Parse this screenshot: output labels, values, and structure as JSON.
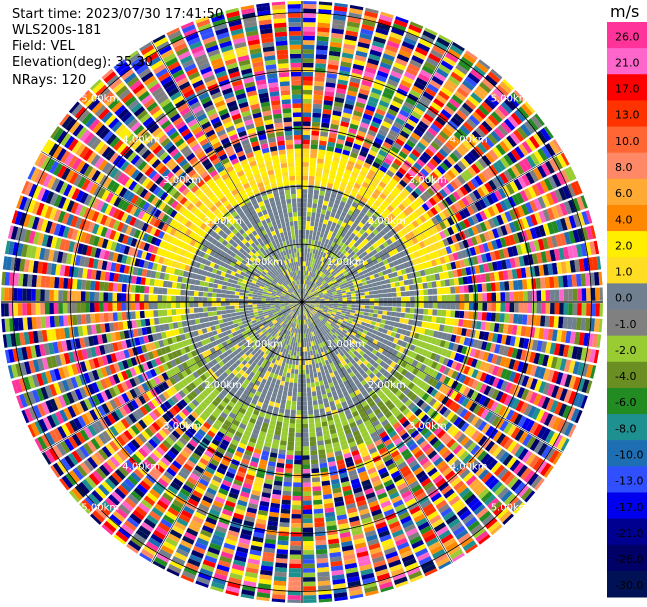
{
  "header": {
    "start_time": "Start time: 2023/07/30 17:41:50",
    "instrument": "WLS200s-181",
    "field": "Field: VEL",
    "elevation": "Elevation(deg): 35.30",
    "nrays": "NRays: 120"
  },
  "chart_data": {
    "type": "heatmap",
    "projection": "polar PPI scan",
    "field": "VEL",
    "unit": "m/s",
    "nrays": 120,
    "range_rings_km": [
      1.0,
      2.0,
      3.0,
      4.0,
      5.0
    ],
    "ring_labels": [
      "1.00km",
      "2.00km",
      "3.00km",
      "4.00km",
      "5.00km"
    ],
    "max_range_km": 5.2,
    "colorbar": {
      "unit": "m/s",
      "ticks": [
        "26.0",
        "21.0",
        "17.0",
        "13.0",
        "10.0",
        "8.0",
        "6.0",
        "4.0",
        "2.0",
        "1.0",
        "0.0",
        "-1.0",
        "-2.0",
        "-4.0",
        "-6.0",
        "-8.0",
        "-10.0",
        "-13.0",
        "-17.0",
        "-21.0",
        "-26.0",
        "-30.0"
      ],
      "colors": [
        "#ff3399",
        "#ff66cc",
        "#ff0000",
        "#ff3300",
        "#ff6633",
        "#ff8866",
        "#ffaa33",
        "#ff8800",
        "#ffee00",
        "#ffdd22",
        "#708090",
        "#808080",
        "#99cc33",
        "#6b8e23",
        "#228b22",
        "#1e9090",
        "#1e6eb4",
        "#3050ff",
        "#0000ee",
        "#000090",
        "#000066",
        "#001155"
      ]
    },
    "regions_km": [
      {
        "range": [
          0.0,
          2.0
        ],
        "dominant": "near-zero velocity (gray) with scattered -1.0 (green) and 1.0 (yellow) gates"
      },
      {
        "range": [
          2.0,
          2.6
        ],
        "dominant": "positive velocity 1.0 to 4.0 on north side, negative -1.0 to -4.0 on south side"
      },
      {
        "range": [
          2.6,
          5.2
        ],
        "dominant": "noisy gates spanning full color scale"
      }
    ]
  }
}
